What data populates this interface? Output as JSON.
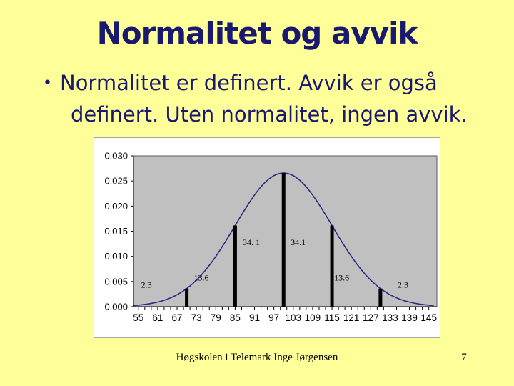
{
  "slide": {
    "title": "Normalitet og avvik",
    "bullet": {
      "marker": "•",
      "lines": [
        "Normalitet er definert. Avvik er også",
        "definert. Uten normalitet, ingen avvik."
      ]
    },
    "footer": {
      "text": "Høgskolen i Telemark Inge Jørgensen",
      "page_number": "7"
    }
  },
  "colors": {
    "background": "#FFFF99",
    "text": "#191970",
    "chart_background": "#FFFFFF",
    "plot_background": "#C0C0C0",
    "plot_border": "#5A5A5A",
    "curve": "#2B2B80",
    "bar": "#000000",
    "axis_text": "#000000",
    "chart_border": "#A8A89A"
  },
  "chart_data": {
    "type": "line",
    "title": "",
    "xlabel": "",
    "ylabel": "",
    "grid": false,
    "legend": "none",
    "xlim": [
      53.5,
      147.5
    ],
    "ylim": [
      0,
      0.03
    ],
    "x_tick_values": [
      55,
      61,
      67,
      73,
      79,
      85,
      91,
      97,
      103,
      109,
      115,
      121,
      127,
      133,
      139,
      145
    ],
    "x_tick_labels": [
      "55",
      "61",
      "67",
      "73",
      "79",
      "85",
      "91",
      "97",
      "103",
      "109",
      "115",
      "121",
      "127",
      "133",
      "139",
      "145"
    ],
    "x_minor_tick_step": 2,
    "y_tick_values": [
      0,
      0.005,
      0.01,
      0.015,
      0.02,
      0.025,
      0.03
    ],
    "y_tick_labels": [
      "0,000",
      "0,005",
      "0,010",
      "0,015",
      "0,020",
      "0,025",
      "0,030"
    ],
    "curve": {
      "name": "normal-distribution-pdf",
      "x_start": 53.5,
      "x_step": 1.5,
      "values": [
        0.000218,
        0.000295,
        0.000397,
        0.000528,
        0.000695,
        0.000906,
        0.001169,
        0.001493,
        0.001888,
        0.002365,
        0.002932,
        0.0036,
        0.004374,
        0.005264,
        0.00627,
        0.007395,
        0.008634,
        0.009982,
        0.011425,
        0.012946,
        0.014523,
        0.016131,
        0.017739,
        0.019313,
        0.020817,
        0.022215,
        0.023471,
        0.024551,
        0.025426,
        0.02607,
        0.026464,
        0.026596,
        0.026464,
        0.02607,
        0.025426,
        0.024551,
        0.023471,
        0.022215,
        0.020817,
        0.019313,
        0.017739,
        0.016131,
        0.014523,
        0.012946,
        0.011425,
        0.009982,
        0.008634,
        0.007395,
        0.00627,
        0.005264,
        0.004374,
        0.0036,
        0.002932,
        0.002365,
        0.001888,
        0.001493,
        0.001169,
        0.000906,
        0.000695,
        0.000528,
        0.000397,
        0.000295,
        0.000218
      ]
    },
    "bars": [
      {
        "x": 70,
        "value": 0.0036
      },
      {
        "x": 85,
        "value": 0.016131
      },
      {
        "x": 100,
        "value": 0.026596
      },
      {
        "x": 115,
        "value": 0.016131
      },
      {
        "x": 130,
        "value": 0.0036
      }
    ],
    "area_labels": [
      {
        "text": "2.3",
        "x": 57.5,
        "y": 0.0038
      },
      {
        "text": "13.6",
        "x": 74.5,
        "y": 0.0052
      },
      {
        "text": "34. 1",
        "x": 90.0,
        "y": 0.0122
      },
      {
        "text": "34.1",
        "x": 104.5,
        "y": 0.0122
      },
      {
        "text": "13.6",
        "x": 118.0,
        "y": 0.0052
      },
      {
        "text": "2.3",
        "x": 137.0,
        "y": 0.0038
      }
    ]
  }
}
